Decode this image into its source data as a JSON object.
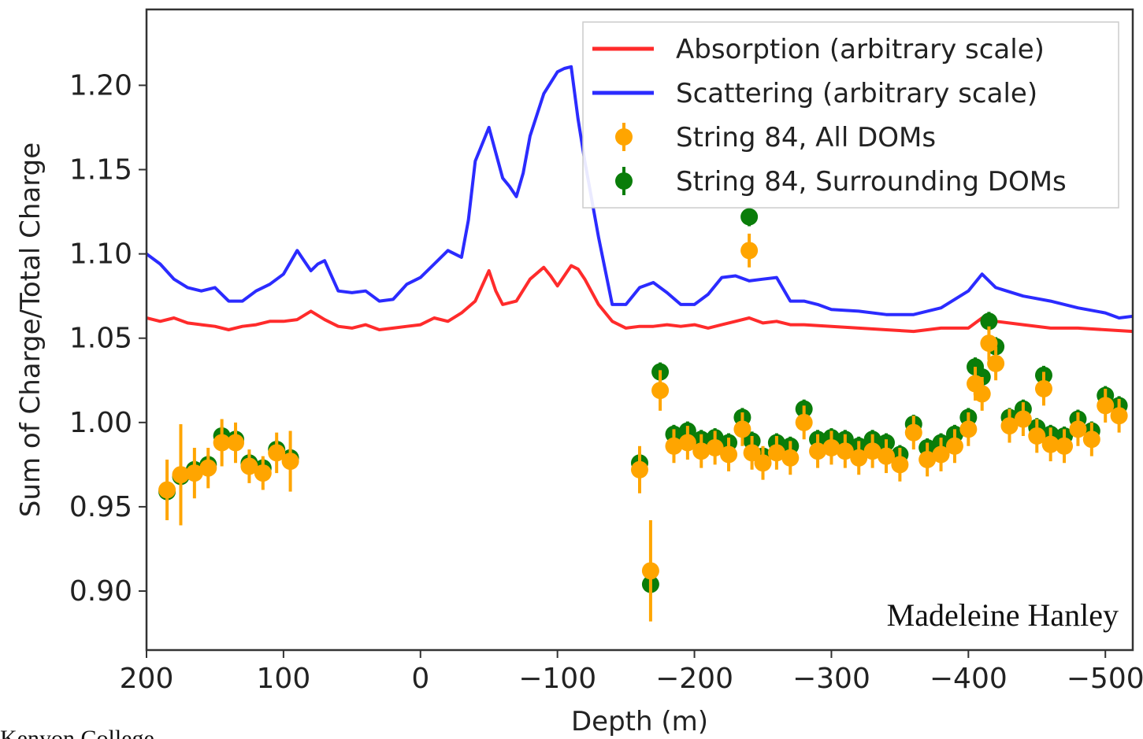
{
  "chart_data": {
    "type": "line",
    "xlabel": "Depth (m)",
    "ylabel": "Sum of Charge/Total Charge",
    "xlim": [
      200,
      -520
    ],
    "ylim": [
      0.865,
      1.245
    ],
    "x_ticks": [
      200,
      100,
      0,
      -100,
      -200,
      -300,
      -400,
      -500
    ],
    "x_tick_labels": [
      "200",
      "100",
      "0",
      "−100",
      "−200",
      "−300",
      "−400",
      "−500"
    ],
    "y_ticks": [
      0.9,
      0.95,
      1.0,
      1.05,
      1.1,
      1.15,
      1.2
    ],
    "y_tick_labels": [
      "0.90",
      "0.95",
      "1.00",
      "1.05",
      "1.10",
      "1.15",
      "1.20"
    ],
    "grid": false,
    "legend_position": "top-right",
    "series": [
      {
        "name": "Absorption (arbitrary scale)",
        "kind": "line",
        "color": "#ff2b2b",
        "x": [
          200,
          190,
          180,
          170,
          160,
          150,
          140,
          130,
          120,
          110,
          100,
          90,
          80,
          70,
          60,
          50,
          40,
          30,
          20,
          10,
          0,
          -10,
          -20,
          -30,
          -40,
          -50,
          -55,
          -60,
          -70,
          -80,
          -90,
          -95,
          -100,
          -110,
          -115,
          -120,
          -130,
          -140,
          -150,
          -160,
          -170,
          -180,
          -190,
          -200,
          -210,
          -220,
          -230,
          -240,
          -250,
          -260,
          -270,
          -280,
          -300,
          -320,
          -340,
          -360,
          -380,
          -400,
          -410,
          -420,
          -440,
          -460,
          -480,
          -500,
          -520
        ],
        "y": [
          1.062,
          1.06,
          1.062,
          1.059,
          1.058,
          1.057,
          1.055,
          1.057,
          1.058,
          1.06,
          1.06,
          1.061,
          1.066,
          1.061,
          1.057,
          1.056,
          1.058,
          1.055,
          1.056,
          1.057,
          1.058,
          1.062,
          1.06,
          1.065,
          1.072,
          1.09,
          1.078,
          1.07,
          1.072,
          1.085,
          1.092,
          1.087,
          1.081,
          1.093,
          1.091,
          1.085,
          1.07,
          1.06,
          1.056,
          1.057,
          1.057,
          1.058,
          1.057,
          1.058,
          1.056,
          1.058,
          1.06,
          1.062,
          1.059,
          1.06,
          1.058,
          1.058,
          1.057,
          1.056,
          1.055,
          1.054,
          1.056,
          1.056,
          1.062,
          1.06,
          1.058,
          1.056,
          1.056,
          1.055,
          1.054
        ]
      },
      {
        "name": "Scattering (arbitrary scale)",
        "kind": "line",
        "color": "#2b2bff",
        "x": [
          200,
          190,
          180,
          170,
          160,
          150,
          140,
          130,
          120,
          110,
          100,
          90,
          85,
          80,
          75,
          70,
          60,
          50,
          40,
          30,
          20,
          10,
          0,
          -10,
          -20,
          -30,
          -35,
          -40,
          -45,
          -50,
          -55,
          -60,
          -65,
          -70,
          -75,
          -80,
          -90,
          -100,
          -105,
          -110,
          -115,
          -120,
          -130,
          -140,
          -150,
          -160,
          -170,
          -180,
          -190,
          -200,
          -210,
          -220,
          -230,
          -240,
          -250,
          -260,
          -270,
          -280,
          -290,
          -300,
          -320,
          -340,
          -360,
          -380,
          -400,
          -410,
          -420,
          -440,
          -460,
          -480,
          -500,
          -510,
          -520
        ],
        "y": [
          1.1,
          1.094,
          1.085,
          1.08,
          1.078,
          1.08,
          1.072,
          1.072,
          1.078,
          1.082,
          1.088,
          1.102,
          1.096,
          1.09,
          1.094,
          1.096,
          1.078,
          1.077,
          1.078,
          1.072,
          1.073,
          1.082,
          1.086,
          1.094,
          1.102,
          1.098,
          1.12,
          1.155,
          1.165,
          1.175,
          1.16,
          1.145,
          1.14,
          1.134,
          1.148,
          1.17,
          1.195,
          1.208,
          1.21,
          1.211,
          1.18,
          1.155,
          1.11,
          1.07,
          1.07,
          1.08,
          1.083,
          1.077,
          1.07,
          1.07,
          1.076,
          1.086,
          1.087,
          1.084,
          1.085,
          1.086,
          1.072,
          1.072,
          1.07,
          1.067,
          1.066,
          1.064,
          1.064,
          1.068,
          1.078,
          1.088,
          1.08,
          1.075,
          1.072,
          1.068,
          1.065,
          1.062,
          1.063
        ]
      },
      {
        "name": "String 84, Surrounding DOMs",
        "kind": "scatter",
        "color": "#0a7d0a",
        "x": [
          185,
          175,
          165,
          155,
          145,
          135,
          125,
          115,
          105,
          95,
          -160,
          -175,
          -185,
          -195,
          -205,
          -215,
          -225,
          -235,
          -240,
          -250,
          -260,
          -270,
          -280,
          -290,
          -300,
          -310,
          -320,
          -330,
          -340,
          -350,
          -360,
          -370,
          -380,
          -390,
          -400,
          -405,
          -410,
          -415,
          -420,
          -430,
          -440,
          -450,
          -455,
          -460,
          -470,
          -480,
          -490,
          -500,
          -510,
          -168,
          -242
        ],
        "y": [
          0.959,
          0.968,
          0.972,
          0.975,
          0.992,
          0.99,
          0.976,
          0.973,
          0.984,
          0.979,
          0.976,
          1.03,
          0.993,
          0.995,
          0.99,
          0.991,
          0.988,
          1.003,
          1.122,
          0.98,
          0.988,
          0.986,
          1.008,
          0.99,
          0.991,
          0.99,
          0.986,
          0.99,
          0.988,
          0.981,
          0.999,
          0.985,
          0.988,
          0.993,
          1.003,
          1.033,
          1.027,
          1.06,
          1.045,
          1.003,
          1.008,
          0.997,
          1.028,
          0.993,
          0.992,
          1.002,
          0.995,
          1.016,
          1.01,
          0.904,
          0.989
        ]
      },
      {
        "name": "String 84, All DOMs",
        "kind": "errorbar",
        "color": "#ffa500",
        "x": [
          185,
          175,
          165,
          155,
          145,
          135,
          125,
          115,
          105,
          95,
          -160,
          -175,
          -185,
          -195,
          -205,
          -215,
          -225,
          -235,
          -240,
          -250,
          -260,
          -270,
          -280,
          -290,
          -300,
          -310,
          -320,
          -330,
          -340,
          -350,
          -360,
          -370,
          -380,
          -390,
          -400,
          -405,
          -410,
          -415,
          -420,
          -430,
          -440,
          -450,
          -455,
          -460,
          -470,
          -480,
          -490,
          -500,
          -510,
          -168,
          -242
        ],
        "y": [
          0.96,
          0.969,
          0.97,
          0.973,
          0.988,
          0.988,
          0.974,
          0.97,
          0.982,
          0.977,
          0.972,
          1.019,
          0.986,
          0.988,
          0.983,
          0.985,
          0.981,
          0.996,
          1.102,
          0.976,
          0.982,
          0.979,
          1.0,
          0.983,
          0.985,
          0.983,
          0.979,
          0.983,
          0.98,
          0.975,
          0.994,
          0.978,
          0.981,
          0.986,
          0.996,
          1.023,
          1.017,
          1.047,
          1.035,
          0.998,
          1.002,
          0.992,
          1.02,
          0.987,
          0.986,
          0.996,
          0.99,
          1.01,
          1.004,
          0.912,
          0.982
        ],
        "yerr": [
          0.018,
          0.03,
          0.015,
          0.012,
          0.014,
          0.012,
          0.01,
          0.01,
          0.012,
          0.018,
          0.014,
          0.012,
          0.01,
          0.01,
          0.01,
          0.01,
          0.01,
          0.01,
          0.01,
          0.01,
          0.01,
          0.01,
          0.01,
          0.01,
          0.01,
          0.01,
          0.01,
          0.01,
          0.01,
          0.01,
          0.01,
          0.01,
          0.01,
          0.01,
          0.01,
          0.01,
          0.01,
          0.01,
          0.01,
          0.01,
          0.01,
          0.01,
          0.01,
          0.01,
          0.01,
          0.01,
          0.01,
          0.01,
          0.01,
          0.03,
          0.01
        ]
      }
    ],
    "legend": [
      {
        "label": "Absorption (arbitrary scale)",
        "marker": "line",
        "color": "#ff2b2b"
      },
      {
        "label": "Scattering (arbitrary scale)",
        "marker": "line",
        "color": "#2b2bff"
      },
      {
        "label": "String 84, All DOMs",
        "marker": "errorbar",
        "color": "#ffa500"
      },
      {
        "label": "String 84, Surrounding DOMs",
        "marker": "errorbar",
        "color": "#0a7d0a"
      }
    ]
  },
  "annotations": {
    "author": "Madeleine Hanley",
    "footer": "Kenyon College"
  }
}
